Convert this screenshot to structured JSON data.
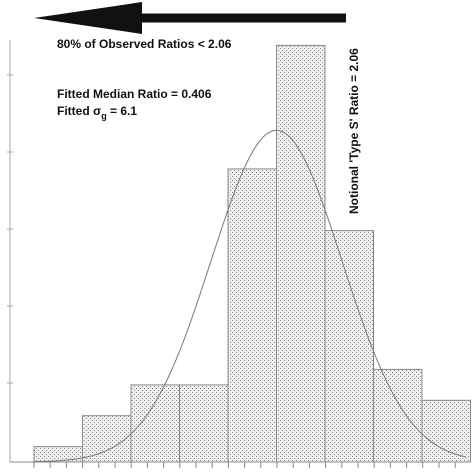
{
  "chart_data": {
    "type": "bar",
    "title": "",
    "xlabel": "",
    "ylabel": "",
    "ylim": [
      0,
      28
    ],
    "grid": false,
    "bins": [
      {
        "index": 0,
        "value": 1
      },
      {
        "index": 1,
        "value": 3
      },
      {
        "index": 2,
        "value": 5
      },
      {
        "index": 3,
        "value": 5
      },
      {
        "index": 4,
        "value": 19
      },
      {
        "index": 5,
        "value": 27
      },
      {
        "index": 6,
        "value": 15
      },
      {
        "index": 7,
        "value": 6
      },
      {
        "index": 8,
        "value": 4
      }
    ],
    "fitted_curve": {
      "peak_bin_position": 5.0,
      "peak_value": 21.5,
      "sigma_bins": 1.35
    },
    "reference_line": {
      "label": "Notional 'Type S' Ratio = 2.06",
      "bin_position": 6.55
    },
    "annotations": {
      "arrow_text": "80% of Observed Ratios < 2.06",
      "median_text": "Fitted Median Ratio = 0.406",
      "sigma_prefix": "Fitted σ",
      "sigma_subscript": "g",
      "sigma_suffix": " = 6.1"
    },
    "colors": {
      "bar_fill": "#e0e0e0",
      "bar_stroke": "#888888",
      "curve": "#777777",
      "text": "#111111",
      "arrow": "#111111"
    }
  }
}
